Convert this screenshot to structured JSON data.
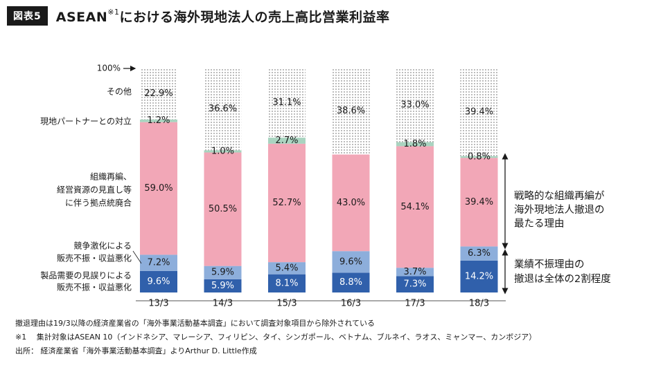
{
  "header": {
    "badge": "図表5",
    "title_main": "ASEAN",
    "title_sup": "※1",
    "title_rest": "における海外現地法人の売上高比営業利益率"
  },
  "chart_data": {
    "type": "bar",
    "stacked": true,
    "categories": [
      "13/3",
      "14/3",
      "15/3",
      "16/3",
      "17/3",
      "18/3"
    ],
    "ylim": [
      0,
      100
    ],
    "y_top_label": "100%",
    "series": [
      {
        "name": "製品需要の見誤りによる販売不振・収益悪化",
        "color": "#3060ab",
        "values": [
          9.6,
          5.9,
          8.1,
          8.8,
          7.3,
          14.2
        ],
        "labels": [
          "9.6%",
          "5.9%",
          "8.1%",
          "8.8%",
          "7.3%",
          "14.2%"
        ]
      },
      {
        "name": "競争激化による販売不振・収益悪化",
        "color": "#8daedb",
        "values": [
          7.2,
          5.9,
          5.4,
          9.6,
          3.7,
          6.3
        ],
        "labels": [
          "7.2%",
          "5.9%",
          "5.4%",
          "9.6%",
          "3.7%",
          "6.3%"
        ]
      },
      {
        "name": "組織再編、経営資源の見直し等に伴う拠点統廃合",
        "color": "#f2a7b7",
        "values": [
          59.0,
          50.5,
          52.7,
          43.0,
          54.1,
          39.4
        ],
        "labels": [
          "59.0%",
          "50.5%",
          "52.7%",
          "43.0%",
          "54.1%",
          "39.4%"
        ]
      },
      {
        "name": "現地パートナーとの対立",
        "color": "#a9d4c0",
        "values": [
          1.2,
          1.0,
          2.7,
          0,
          1.8,
          0.8
        ],
        "labels": [
          "1.2%",
          "1.0%",
          "2.7%",
          "",
          "1.8%",
          "0.8%"
        ]
      },
      {
        "name": "その他",
        "color": "dotted",
        "values": [
          22.9,
          36.6,
          31.1,
          38.6,
          33.0,
          39.4
        ],
        "labels": [
          "22.9%",
          "36.6%",
          "31.1%",
          "38.6%",
          "33.0%",
          "39.4%"
        ]
      }
    ],
    "legend_labels": {
      "other": "その他",
      "partner": "現地パートナーとの対立",
      "restructure": [
        "組織再編、",
        "経営資源の見直し等",
        "に伴う拠点統廃合"
      ],
      "competition": [
        "競争激化による",
        "販売不振・収益悪化"
      ],
      "demand": [
        "製品需要の見誤りによる",
        "販売不振・収益悪化"
      ]
    },
    "annotations": {
      "strategic": [
        "戦略的な組織再編が",
        "海外現地法人撤退の",
        "最たる理由"
      ],
      "performance": [
        "業績不振理由の",
        "撤退は全体の2割程度"
      ]
    }
  },
  "notes": {
    "line1": "撤退理由は19/3以降の経済産業省の「海外事業活動基本調査」において調査対象項目から除外されている",
    "line2": "※1　 集計対象はASEAN 10（インドネシア、マレーシア、フィリピン、タイ、シンガポール、ベトナム、ブルネイ、ラオス、ミャンマー、カンボジア）",
    "line3": "出所： 経済産業省「海外事業活動基本調査」よりArthur D. Little作成"
  }
}
